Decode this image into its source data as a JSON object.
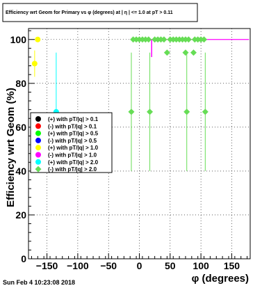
{
  "chart_data": {
    "type": "scatter",
    "title": "Efficiency wrt Geom for Primary vs φ (degrees) at | η | <= 1.0 at pT > 0.11",
    "xlabel": "φ (degrees)",
    "ylabel": "Efficiency wrt Geom (%)",
    "xlim": [
      -180,
      180
    ],
    "ylim": [
      0,
      105
    ],
    "x_ticks": [
      -150,
      -100,
      -50,
      0,
      50,
      100,
      150
    ],
    "x_tick_labels": [
      "−150",
      "−100",
      "−50",
      "0",
      "50",
      "100",
      "150"
    ],
    "y_ticks": [
      0,
      20,
      40,
      60,
      80,
      100
    ],
    "y_tick_labels": [
      "0",
      "20",
      "40",
      "60",
      "80",
      "100"
    ],
    "grid": true,
    "legend_position": "left-middle",
    "legend": [
      {
        "label": "(+) with pT/|q| > 0.1",
        "color": "#000000",
        "marker": "circle"
      },
      {
        "label": "(-) with pT/|q| > 0.1",
        "color": "#ff0000",
        "marker": "circle"
      },
      {
        "label": "(+) with pT/|q| > 0.5",
        "color": "#00ff00",
        "marker": "circle"
      },
      {
        "label": "(-) with pT/|q| > 0.5",
        "color": "#0000ff",
        "marker": "circle"
      },
      {
        "label": "(+) with pT/|q| > 1.0",
        "color": "#ffff00",
        "marker": "circle"
      },
      {
        "label": "(-) with pT/|q| > 1.0",
        "color": "#ff00ff",
        "marker": "circle"
      },
      {
        "label": "(+) with pT/|q| > 2.0",
        "color": "#00ffff",
        "marker": "circle"
      },
      {
        "label": "(-) with pT/|q| > 2.0",
        "color": "#66dd55",
        "marker": "diamond"
      }
    ],
    "series": [
      {
        "color": "#ff00ff",
        "marker": "line",
        "points": [
          {
            "x": -10,
            "y": 100,
            "err": 0
          },
          {
            "x": 178,
            "y": 100,
            "err": 0
          },
          {
            "x": 20,
            "y": 100,
            "err": 8
          }
        ]
      },
      {
        "color": "#ffff00",
        "marker": "circle",
        "points": [
          {
            "x": -170,
            "y": 89,
            "err": 6
          },
          {
            "x": -165,
            "y": 100,
            "err": 0
          }
        ]
      },
      {
        "color": "#00ffff",
        "marker": "circle",
        "points": [
          {
            "x": -135,
            "y": 67,
            "err": 27
          }
        ]
      },
      {
        "color": "#66dd55",
        "marker": "diamond",
        "points": [
          {
            "x": -13,
            "y": 67,
            "err": 27
          },
          {
            "x": 17,
            "y": 67,
            "err": 27
          },
          {
            "x": 77,
            "y": 67,
            "err": 27
          },
          {
            "x": 107,
            "y": 67,
            "err": 27
          },
          {
            "x": -10,
            "y": 100,
            "err": 0
          },
          {
            "x": -5,
            "y": 100,
            "err": 0
          },
          {
            "x": 0,
            "y": 100,
            "err": 0
          },
          {
            "x": 5,
            "y": 100,
            "err": 0
          },
          {
            "x": 10,
            "y": 100,
            "err": 0
          },
          {
            "x": 15,
            "y": 100,
            "err": 0
          },
          {
            "x": 25,
            "y": 100,
            "err": 0
          },
          {
            "x": 30,
            "y": 100,
            "err": 0
          },
          {
            "x": 35,
            "y": 100,
            "err": 0
          },
          {
            "x": 40,
            "y": 100,
            "err": 0
          },
          {
            "x": 50,
            "y": 100,
            "err": 0
          },
          {
            "x": 55,
            "y": 100,
            "err": 0
          },
          {
            "x": 60,
            "y": 100,
            "err": 0
          },
          {
            "x": 65,
            "y": 100,
            "err": 0
          },
          {
            "x": 70,
            "y": 100,
            "err": 0
          },
          {
            "x": 75,
            "y": 100,
            "err": 0
          },
          {
            "x": 80,
            "y": 100,
            "err": 0
          },
          {
            "x": 90,
            "y": 100,
            "err": 0
          },
          {
            "x": 95,
            "y": 100,
            "err": 0
          },
          {
            "x": 100,
            "y": 100,
            "err": 0
          },
          {
            "x": 105,
            "y": 100,
            "err": 0
          },
          {
            "x": 45,
            "y": 94,
            "err": 0
          },
          {
            "x": 75,
            "y": 94,
            "err": 0
          },
          {
            "x": 88,
            "y": 94,
            "err": 0
          }
        ]
      }
    ]
  },
  "footer": {
    "timestamp": "Sun Feb  4 10:23:08 2018"
  }
}
